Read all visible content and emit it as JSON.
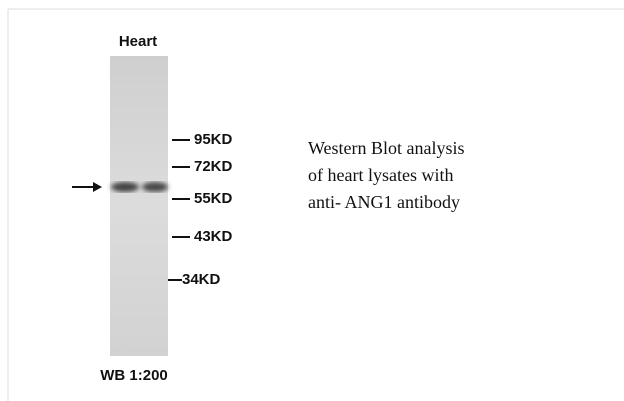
{
  "figure": {
    "lane_label": "Heart",
    "markers": [
      "95KD",
      "72KD",
      "55KD",
      "43KD",
      "34KD"
    ],
    "caption": [
      "Western Blot analysis",
      "of heart lysates with",
      "anti- ANG1 antibody"
    ],
    "footer": "WB 1:200"
  }
}
